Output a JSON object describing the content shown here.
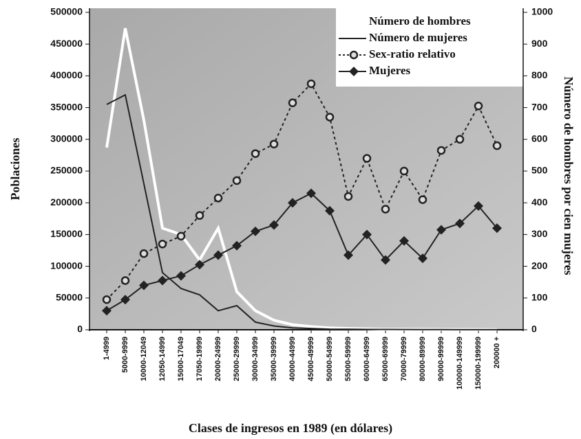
{
  "chart_data": {
    "type": "line",
    "xlabel": "Clases de ingresos en 1989 (en dólares)",
    "ylabel": "Poblaciones",
    "y2label": "Número de hombres por cien mujeres",
    "categories": [
      "1-4999",
      "5000-9999",
      "10000-12049",
      "12050-14999",
      "15000-17049",
      "17050-19999",
      "20000-24999",
      "25000-29999",
      "30000-34999",
      "35000-39999",
      "40000-44999",
      "45000-49999",
      "50000-54999",
      "55000-59999",
      "60000-64999",
      "65000-69999",
      "70000-79999",
      "80000-89999",
      "90000-99999",
      "100000-149999",
      "150000-199999",
      "200000 +"
    ],
    "ylim": [
      0,
      500000
    ],
    "yticks": [
      0,
      50000,
      100000,
      150000,
      200000,
      250000,
      300000,
      350000,
      400000,
      450000,
      500000
    ],
    "y2lim": [
      0,
      1000
    ],
    "y2ticks": [
      0,
      100,
      200,
      300,
      400,
      500,
      600,
      700,
      800,
      900,
      1000
    ],
    "legend": "top-right",
    "series": [
      {
        "name": "Número de hombres",
        "color": "#ffffff",
        "marker": "none",
        "dashed": false,
        "values": [
          287000,
          475000,
          330000,
          160000,
          150000,
          110000,
          160000,
          60000,
          30000,
          15000,
          8000,
          5000,
          3000,
          2000,
          1500,
          1000,
          1000,
          800,
          600,
          500,
          400,
          300
        ]
      },
      {
        "name": "Número de mujeres",
        "color": "#222222",
        "marker": "none",
        "dashed": false,
        "values": [
          355000,
          370000,
          230000,
          90000,
          65000,
          55000,
          30000,
          38000,
          12000,
          6000,
          3000,
          2000,
          1000,
          800,
          600,
          500,
          400,
          300,
          300,
          200,
          200,
          100
        ]
      },
      {
        "name": "Sex-ratio relativo",
        "color": "#222222",
        "marker": "circle",
        "dashed": true,
        "axis": "y2",
        "values": [
          95,
          155,
          240,
          270,
          295,
          360,
          415,
          470,
          555,
          585,
          715,
          775,
          670,
          420,
          540,
          380,
          500,
          410,
          565,
          600,
          705,
          580
        ]
      },
      {
        "name": "Mujeres",
        "color": "#222222",
        "marker": "diamond",
        "dashed": false,
        "axis": "y2",
        "values": [
          60,
          95,
          140,
          155,
          170,
          205,
          235,
          265,
          310,
          330,
          400,
          430,
          375,
          235,
          300,
          220,
          280,
          225,
          315,
          335,
          390,
          320
        ]
      }
    ]
  }
}
